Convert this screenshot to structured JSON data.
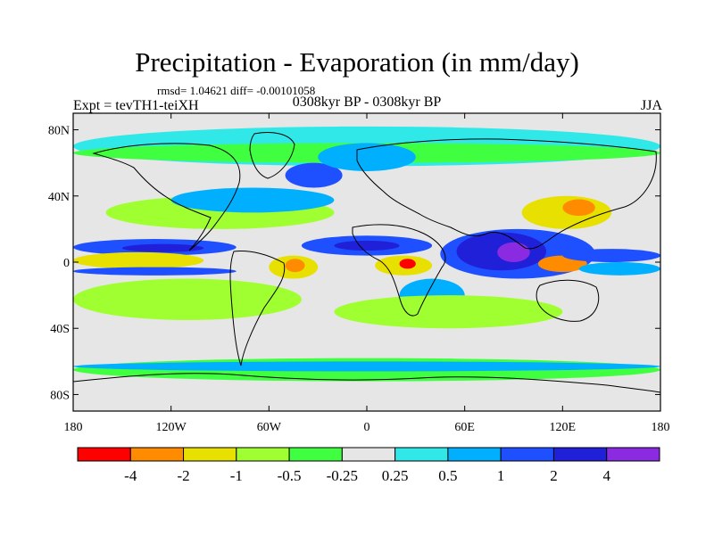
{
  "title": "Precipitation - Evaporation (in mm/day)",
  "stats_text": "rmsd= 1.04621 diff= -0.00101058",
  "left_label": "Expt = tevTH1-teiXH",
  "center_label": "0308kyr BP - 0308kyr BP",
  "right_label": "JJA",
  "chart_data": {
    "type": "heatmap",
    "title": "Precipitation - Evaporation (in mm/day)",
    "xlabel": "",
    "ylabel": "",
    "xlim": [
      -180,
      180
    ],
    "ylim": [
      -90,
      90
    ],
    "x_ticks": [
      {
        "value": -180,
        "label": "180"
      },
      {
        "value": -120,
        "label": "120W"
      },
      {
        "value": -60,
        "label": "60W"
      },
      {
        "value": 0,
        "label": "0"
      },
      {
        "value": 60,
        "label": "60E"
      },
      {
        "value": 120,
        "label": "120E"
      },
      {
        "value": 180,
        "label": "180"
      }
    ],
    "y_ticks": [
      {
        "value": 80,
        "label": "80N"
      },
      {
        "value": 40,
        "label": "40N"
      },
      {
        "value": 0,
        "label": "0"
      },
      {
        "value": -40,
        "label": "40S"
      },
      {
        "value": -80,
        "label": "80S"
      }
    ],
    "background_color": "#e6e6e6",
    "colorbar": {
      "boxes": [
        {
          "color": "#ff0000"
        },
        {
          "color": "#ff8c00"
        },
        {
          "color": "#e8e000"
        },
        {
          "color": "#a0ff30"
        },
        {
          "color": "#40ff40"
        },
        {
          "color": "#e6e6e6"
        },
        {
          "color": "#30e8e8"
        },
        {
          "color": "#00b0ff"
        },
        {
          "color": "#1f50ff"
        },
        {
          "color": "#2020d8"
        },
        {
          "color": "#8a2be2"
        }
      ],
      "labels": [
        "-4",
        "-2",
        "-1",
        "-0.5",
        "-0.25",
        "0.25",
        "0.5",
        "1",
        "2",
        "4"
      ],
      "levels": [
        -4,
        -2,
        -1,
        -0.5,
        -0.25,
        0.25,
        0.5,
        1,
        2,
        4
      ]
    },
    "fields": [
      {
        "level": 0.25,
        "color": "#30e8e8",
        "lon": [
          -180,
          180
        ],
        "lat": [
          58,
          82
        ]
      },
      {
        "level": -0.25,
        "color": "#40ff40",
        "lon": [
          -180,
          180
        ],
        "lat": [
          60,
          72
        ]
      },
      {
        "level": 2,
        "color": "#1f50ff",
        "lon": [
          -50,
          -15
        ],
        "lat": [
          45,
          60
        ]
      },
      {
        "level": 0.5,
        "color": "#00b0ff",
        "lon": [
          -30,
          30
        ],
        "lat": [
          55,
          72
        ]
      },
      {
        "level": -0.5,
        "color": "#a0ff30",
        "lon": [
          -160,
          -20
        ],
        "lat": [
          20,
          40
        ]
      },
      {
        "level": 0.5,
        "color": "#00b0ff",
        "lon": [
          -120,
          -20
        ],
        "lat": [
          30,
          45
        ]
      },
      {
        "level": 2,
        "color": "#1f50ff",
        "lon": [
          -180,
          -80
        ],
        "lat": [
          4,
          14
        ]
      },
      {
        "level": 4,
        "color": "#2020d8",
        "lon": [
          -150,
          -100
        ],
        "lat": [
          6,
          11
        ]
      },
      {
        "level": -2,
        "color": "#ff8c00",
        "lon": [
          -180,
          -140
        ],
        "lat": [
          -2,
          4
        ]
      },
      {
        "level": -1,
        "color": "#e8e000",
        "lon": [
          -180,
          -100
        ],
        "lat": [
          -4,
          6
        ]
      },
      {
        "level": 2,
        "color": "#1f50ff",
        "lon": [
          -180,
          -80
        ],
        "lat": [
          -8,
          -3
        ]
      },
      {
        "level": -0.5,
        "color": "#a0ff30",
        "lon": [
          -180,
          -40
        ],
        "lat": [
          -35,
          -10
        ]
      },
      {
        "level": 2,
        "color": "#1f50ff",
        "lon": [
          -40,
          40
        ],
        "lat": [
          4,
          16
        ]
      },
      {
        "level": 4,
        "color": "#2020d8",
        "lon": [
          -20,
          20
        ],
        "lat": [
          7,
          13
        ]
      },
      {
        "level": -1,
        "color": "#e8e000",
        "lon": [
          -60,
          -30
        ],
        "lat": [
          -10,
          4
        ]
      },
      {
        "level": -2,
        "color": "#ff8c00",
        "lon": [
          -50,
          -38
        ],
        "lat": [
          -6,
          2
        ]
      },
      {
        "level": -1,
        "color": "#e8e000",
        "lon": [
          5,
          40
        ],
        "lat": [
          -8,
          4
        ]
      },
      {
        "level": -4,
        "color": "#ff0000",
        "lon": [
          20,
          30
        ],
        "lat": [
          -4,
          2
        ]
      },
      {
        "level": 2,
        "color": "#1f50ff",
        "lon": [
          45,
          140
        ],
        "lat": [
          -10,
          20
        ]
      },
      {
        "level": 4,
        "color": "#2020d8",
        "lon": [
          55,
          110
        ],
        "lat": [
          -5,
          18
        ]
      },
      {
        "level": 4,
        "color": "#8a2be2",
        "lon": [
          80,
          100
        ],
        "lat": [
          0,
          12
        ]
      },
      {
        "level": -2,
        "color": "#ff8c00",
        "lon": [
          105,
          135
        ],
        "lat": [
          -6,
          4
        ]
      },
      {
        "level": -1,
        "color": "#e8e000",
        "lon": [
          95,
          150
        ],
        "lat": [
          20,
          40
        ]
      },
      {
        "level": -2,
        "color": "#ff8c00",
        "lon": [
          120,
          140
        ],
        "lat": [
          28,
          38
        ]
      },
      {
        "level": 2,
        "color": "#1f50ff",
        "lon": [
          120,
          180
        ],
        "lat": [
          0,
          8
        ]
      },
      {
        "level": 0.5,
        "color": "#00b0ff",
        "lon": [
          130,
          180
        ],
        "lat": [
          -8,
          0
        ]
      },
      {
        "level": 0.5,
        "color": "#00b0ff",
        "lon": [
          20,
          60
        ],
        "lat": [
          -30,
          -10
        ]
      },
      {
        "level": -0.5,
        "color": "#a0ff30",
        "lon": [
          -20,
          120
        ],
        "lat": [
          -40,
          -20
        ]
      },
      {
        "level": -0.25,
        "color": "#40ff40",
        "lon": [
          -180,
          180
        ],
        "lat": [
          -72,
          -58
        ]
      },
      {
        "level": 0.5,
        "color": "#00b0ff",
        "lon": [
          -180,
          180
        ],
        "lat": [
          -66,
          -60
        ]
      }
    ]
  }
}
